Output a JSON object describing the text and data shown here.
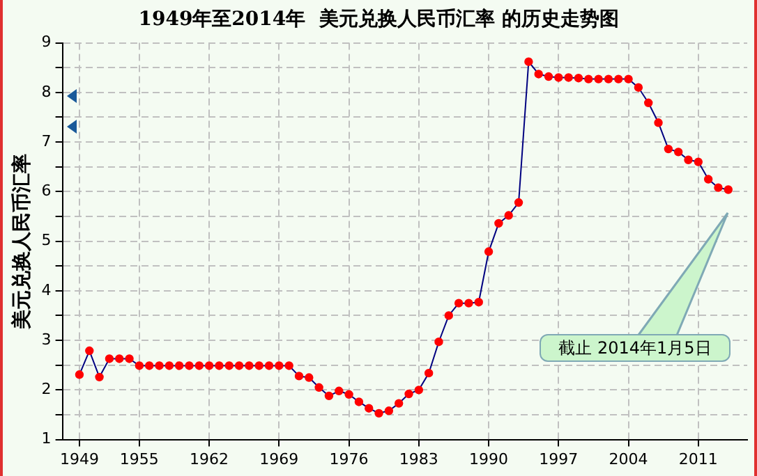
{
  "chart_data": {
    "type": "line",
    "title": "1949年至2014年  美元兑换人民币汇率 的历史走势图",
    "ylabel": "美元兑换人民币汇率",
    "x": [
      1949,
      1950,
      1951,
      1952,
      1953,
      1954,
      1955,
      1956,
      1957,
      1958,
      1959,
      1960,
      1961,
      1962,
      1963,
      1964,
      1965,
      1966,
      1967,
      1968,
      1969,
      1970,
      1971,
      1972,
      1973,
      1974,
      1975,
      1976,
      1977,
      1978,
      1979,
      1980,
      1981,
      1982,
      1983,
      1984,
      1985,
      1986,
      1987,
      1988,
      1989,
      1990,
      1991,
      1992,
      1993,
      1994,
      1995,
      1996,
      1997,
      1998,
      1999,
      2000,
      2001,
      2002,
      2003,
      2004,
      2005,
      2006,
      2007,
      2008,
      2009,
      2010,
      2011,
      2012,
      2013,
      2014
    ],
    "series": [
      {
        "color": "#ff0000",
        "values": [
          2.31,
          2.79,
          2.26,
          2.63,
          2.63,
          2.63,
          2.49,
          2.49,
          2.49,
          2.49,
          2.49,
          2.49,
          2.49,
          2.49,
          2.49,
          2.49,
          2.49,
          2.49,
          2.49,
          2.49,
          2.49,
          2.49,
          2.28,
          2.25,
          2.05,
          1.88,
          1.98,
          1.91,
          1.76,
          1.63,
          1.53,
          1.58,
          1.73,
          1.92,
          2.0,
          2.34,
          2.97,
          3.5,
          3.75,
          3.75,
          3.77,
          4.79,
          5.36,
          5.52,
          5.78,
          8.62,
          8.37,
          8.32,
          8.3,
          8.3,
          8.29,
          8.27,
          8.27,
          8.27,
          8.27,
          8.27,
          8.1,
          7.79,
          7.39,
          6.86,
          6.8,
          6.64,
          6.6,
          6.25,
          6.08,
          6.04
        ]
      }
    ],
    "xlim": [
      1947.3,
      2015.9
    ],
    "xticks": [
      1949,
      1955,
      1962,
      1969,
      1976,
      1983,
      1990,
      1997,
      2004,
      2011
    ],
    "ylim": [
      1,
      9
    ],
    "yticks": [
      1,
      {
        "value": 1.5,
        "label": null
      },
      2,
      {
        "value": 2.5,
        "label": null
      },
      3,
      {
        "value": 3.5,
        "label": null
      },
      4,
      {
        "value": 4.5,
        "label": null
      },
      5,
      {
        "value": 5.5,
        "label": null
      },
      6,
      {
        "value": 6.5,
        "label": null
      },
      7,
      {
        "value": 7.5,
        "label": null
      },
      8,
      {
        "value": 8.5,
        "label": null
      },
      9
    ],
    "grid": true,
    "legend": false,
    "marker": "circle",
    "line_style": "solid",
    "annotations": [
      "截止 2014年1月5日"
    ]
  }
}
